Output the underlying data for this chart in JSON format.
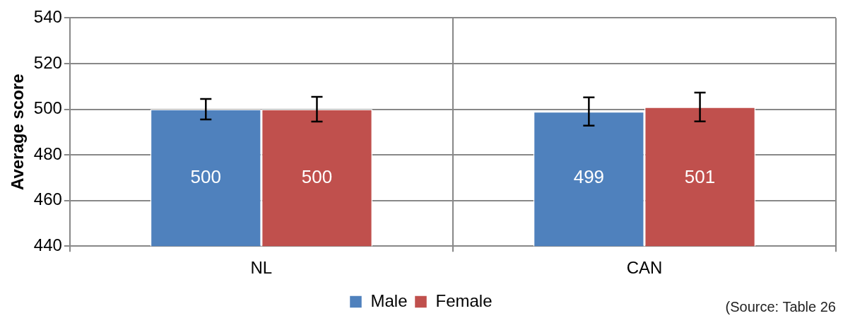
{
  "chart_data": {
    "type": "bar",
    "ylabel": "Average score",
    "categories": [
      "NL",
      "CAN"
    ],
    "series": [
      {
        "name": "Male",
        "color": "#4f81bd",
        "values": [
          500,
          499
        ],
        "errors": [
          4.5,
          6.2
        ]
      },
      {
        "name": "Female",
        "color": "#c0504d",
        "values": [
          500,
          501
        ],
        "errors": [
          5.4,
          6.3
        ]
      }
    ],
    "ylim": [
      440,
      540
    ],
    "yticks": [
      440,
      460,
      480,
      500,
      520,
      540
    ],
    "grid": true,
    "legend": "bottom",
    "data_labels": true,
    "annotations": [
      "(Source: Table 26"
    ]
  }
}
